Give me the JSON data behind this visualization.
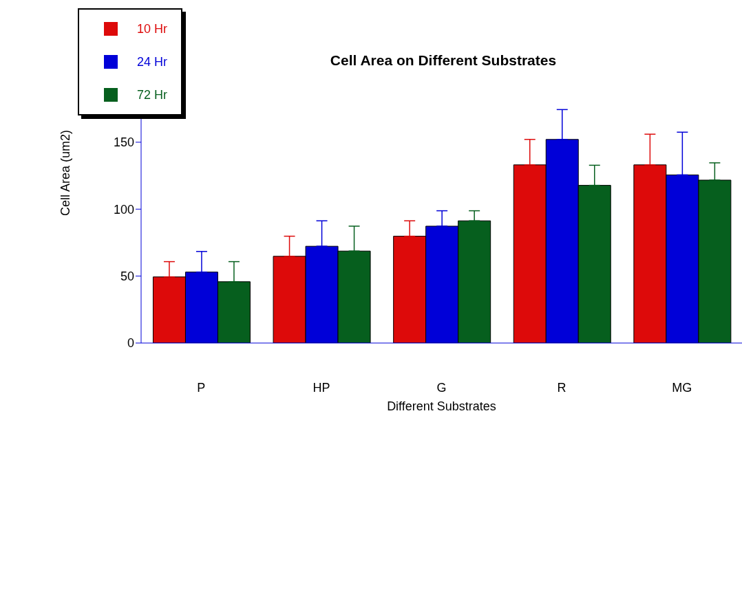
{
  "chart_data": {
    "type": "bar",
    "title": "Cell Area on Different Substrates",
    "xlabel": "Different Substrates",
    "ylabel": "Cell Area (um2)",
    "categories": [
      "P",
      "HP",
      "G",
      "R",
      "MG"
    ],
    "series": [
      {
        "name": "10 Hr",
        "color": "#dd0a0a",
        "values": [
          49.4,
          64.8,
          79.8,
          133.1,
          133.1
        ],
        "errors": [
          [
            49.4,
            60.8
          ],
          [
            64.8,
            79.8
          ],
          [
            79.8,
            91.3
          ],
          [
            133.1,
            152.1
          ],
          [
            133.1,
            156
          ]
        ]
      },
      {
        "name": "24 Hr",
        "color": "#0000d8",
        "values": [
          53,
          72.3,
          87.3,
          152.1,
          125.6
        ],
        "errors": [
          [
            53,
            68.4
          ],
          [
            72.3,
            91.3
          ],
          [
            87.3,
            98.8
          ],
          [
            152.1,
            174.4
          ],
          [
            125.6,
            157.5
          ]
        ]
      },
      {
        "name": "72 Hr",
        "color": "#065f1e",
        "values": [
          45.8,
          68.7,
          91.3,
          117.8,
          121.7
        ],
        "errors": [
          [
            45.8,
            60.8
          ],
          [
            68.7,
            87.3
          ],
          [
            91.3,
            98.8
          ],
          [
            117.8,
            132.8
          ],
          [
            121.7,
            134.6
          ]
        ]
      }
    ],
    "ylim": [
      0,
      190
    ],
    "yticks": [
      0,
      50,
      100,
      150
    ],
    "legend": "top left"
  }
}
